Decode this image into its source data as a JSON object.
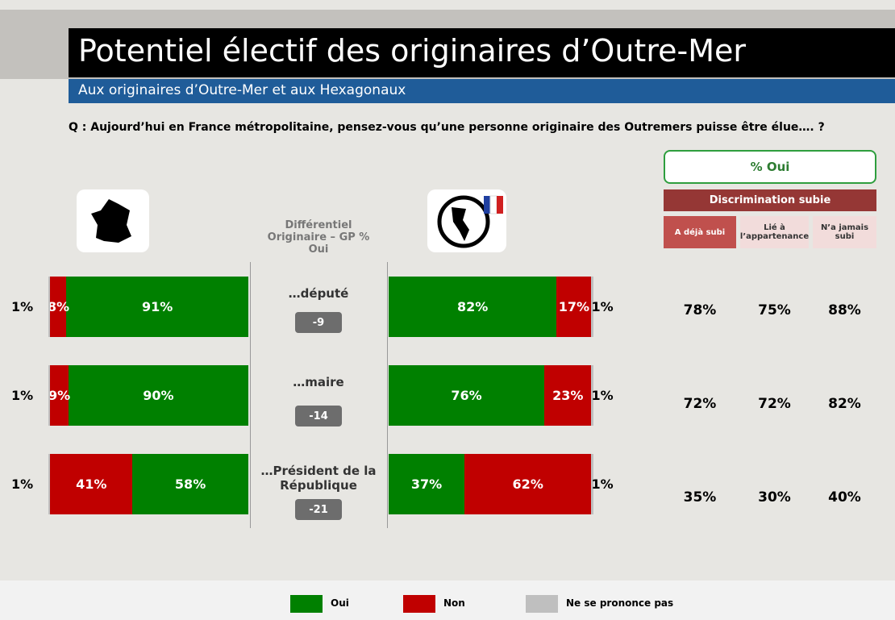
{
  "title": "Potentiel électif des originaires d’Outre-Mer",
  "subtitle": "Aux originaires d’Outre-Mer et aux Hexagonaux",
  "question": "Q : Aujourd’hui en France métropolitaine, pensez-vous qu’une personne originaire des Outremers puisse être élue…. ?",
  "chart_data": {
    "type": "bar",
    "categories": [
      "…député",
      "…maire",
      "…Président de la République"
    ],
    "series": [
      {
        "name": "Oui",
        "color": "#008000",
        "left": [
          91,
          90,
          58
        ],
        "left_labels": [
          "91%",
          "90%",
          "58%"
        ],
        "right": [
          82,
          76,
          37
        ],
        "right_labels": [
          "82%",
          "76%",
          "37%"
        ]
      },
      {
        "name": "Non",
        "color": "#c00000",
        "left": [
          8,
          9,
          41
        ],
        "left_labels": [
          "8%",
          "9%",
          "41%"
        ],
        "right": [
          17,
          23,
          62
        ],
        "right_labels": [
          "17%",
          "23%",
          "62%"
        ]
      },
      {
        "name": "Ne se prononce pas",
        "color": "#bfbfbf",
        "left": [
          1,
          1,
          1
        ],
        "left_labels": [
          "1%",
          "1%",
          "1%"
        ],
        "right": [
          1,
          1,
          1
        ],
        "right_labels": [
          "1%",
          "1%",
          "1%"
        ]
      }
    ],
    "differential": {
      "header": "Différentiel Originaire – GP % Oui",
      "values": [
        -9,
        -14,
        -21
      ]
    },
    "oui_table": {
      "header": "% Oui",
      "group": "Discrimination subie",
      "columns": [
        "A déjà subi",
        "Lié à l’appartenance",
        "N’a jamais subi"
      ],
      "rows": [
        [
          78,
          75,
          88
        ],
        [
          72,
          72,
          82
        ],
        [
          35,
          30,
          40
        ]
      ],
      "row_labels": [
        [
          "78%",
          "75%",
          "88%"
        ],
        [
          "72%",
          "72%",
          "82%"
        ],
        [
          "35%",
          "30%",
          "40%"
        ]
      ]
    }
  }
}
